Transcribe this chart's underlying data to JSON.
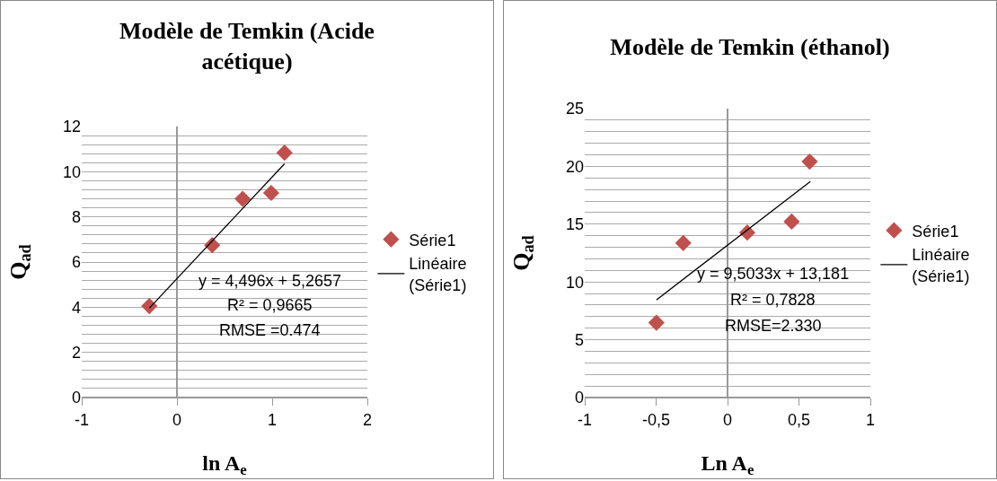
{
  "chart_data": [
    {
      "type": "scatter",
      "title": "Modèle de Temkin (Acide acétique)",
      "xlabel": "ln A$_{e}$",
      "ylabel": "Q$_{ad}$",
      "xlim": [
        -1,
        2
      ],
      "xticks": [
        -1,
        0,
        1,
        2
      ],
      "ylim": [
        0,
        12
      ],
      "yticks": [
        0,
        {
          "value": 0.4,
          "label": null
        },
        {
          "value": 0.8,
          "label": null
        },
        {
          "value": 1.2,
          "label": null
        },
        {
          "value": 1.6,
          "label": null
        },
        2,
        {
          "value": 2.4,
          "label": null
        },
        {
          "value": 2.8,
          "label": null
        },
        {
          "value": 3.2,
          "label": null
        },
        {
          "value": 3.6,
          "label": null
        },
        4,
        {
          "value": 4.4,
          "label": null
        },
        {
          "value": 4.8,
          "label": null
        },
        {
          "value": 5.2,
          "label": null
        },
        {
          "value": 5.6,
          "label": null
        },
        6,
        {
          "value": 6.4,
          "label": null
        },
        {
          "value": 6.8,
          "label": null
        },
        {
          "value": 7.2,
          "label": null
        },
        {
          "value": 7.6,
          "label": null
        },
        8,
        {
          "value": 8.4,
          "label": null
        },
        {
          "value": 8.8,
          "label": null
        },
        {
          "value": 9.2,
          "label": null
        },
        {
          "value": 9.6,
          "label": null
        },
        10,
        {
          "value": 10.4,
          "label": null
        },
        {
          "value": 10.8,
          "label": null
        },
        {
          "value": 11.2,
          "label": null
        },
        {
          "value": 11.6,
          "label": null
        },
        12
      ],
      "grid": "y",
      "legend": "right",
      "series": [
        {
          "name": "Série1",
          "type": "scatter",
          "marker": "diamond",
          "color": "#c0504d",
          "x": [
            -0.29,
            0.37,
            0.69,
            0.99,
            1.13
          ],
          "values": [
            4.05,
            6.75,
            8.8,
            9.06,
            10.84
          ]
        },
        {
          "name": "Linéaire (Série1)",
          "type": "line",
          "marker": "none",
          "line_style": "solid",
          "color": "#000000",
          "x": [
            -0.29,
            1.13
          ],
          "values": [
            3.96,
            10.35
          ]
        }
      ],
      "annotations": [
        "y = 4,496x + 5,2657",
        "R² = 0,9665",
        "RMSE =0.474"
      ]
    },
    {
      "type": "scatter",
      "title": "Modèle de Temkin (éthanol)",
      "xlabel": "Ln A$_{e}$",
      "ylabel": "Q$_{ad}$",
      "xlim": [
        -1,
        1
      ],
      "xticks": [
        -1,
        {
          "value": -0.5,
          "label": "-0,5"
        },
        0,
        {
          "value": 0.5,
          "label": "0,5"
        },
        1
      ],
      "ylim": [
        0,
        25
      ],
      "yticks": [
        0,
        {
          "value": 1,
          "label": null
        },
        {
          "value": 2,
          "label": null
        },
        {
          "value": 3,
          "label": null
        },
        {
          "value": 4,
          "label": null
        },
        5,
        {
          "value": 6,
          "label": null
        },
        {
          "value": 7,
          "label": null
        },
        {
          "value": 8,
          "label": null
        },
        {
          "value": 9,
          "label": null
        },
        10,
        {
          "value": 11,
          "label": null
        },
        {
          "value": 12,
          "label": null
        },
        {
          "value": 13,
          "label": null
        },
        {
          "value": 14,
          "label": null
        },
        15,
        {
          "value": 16,
          "label": null
        },
        {
          "value": 17,
          "label": null
        },
        {
          "value": 18,
          "label": null
        },
        {
          "value": 19,
          "label": null
        },
        20,
        {
          "value": 21,
          "label": null
        },
        {
          "value": 22,
          "label": null
        },
        {
          "value": 23,
          "label": null
        },
        {
          "value": 24,
          "label": null
        },
        25
      ],
      "grid": "y",
      "legend": "right",
      "series": [
        {
          "name": "Série1",
          "type": "scatter",
          "marker": "diamond",
          "color": "#c0504d",
          "x": [
            -0.498,
            -0.31,
            0.138,
            0.449,
            0.575
          ],
          "values": [
            6.48,
            13.37,
            14.27,
            15.22,
            20.41
          ]
        },
        {
          "name": "Linéaire (Série1)",
          "type": "line",
          "marker": "none",
          "line_style": "solid",
          "color": "#000000",
          "x": [
            -0.498,
            0.58
          ],
          "values": [
            8.45,
            18.69
          ]
        }
      ],
      "annotations": [
        "y = 9,5033x + 13,181",
        "R² = 0,7828",
        "RMSE=2.330"
      ]
    }
  ]
}
